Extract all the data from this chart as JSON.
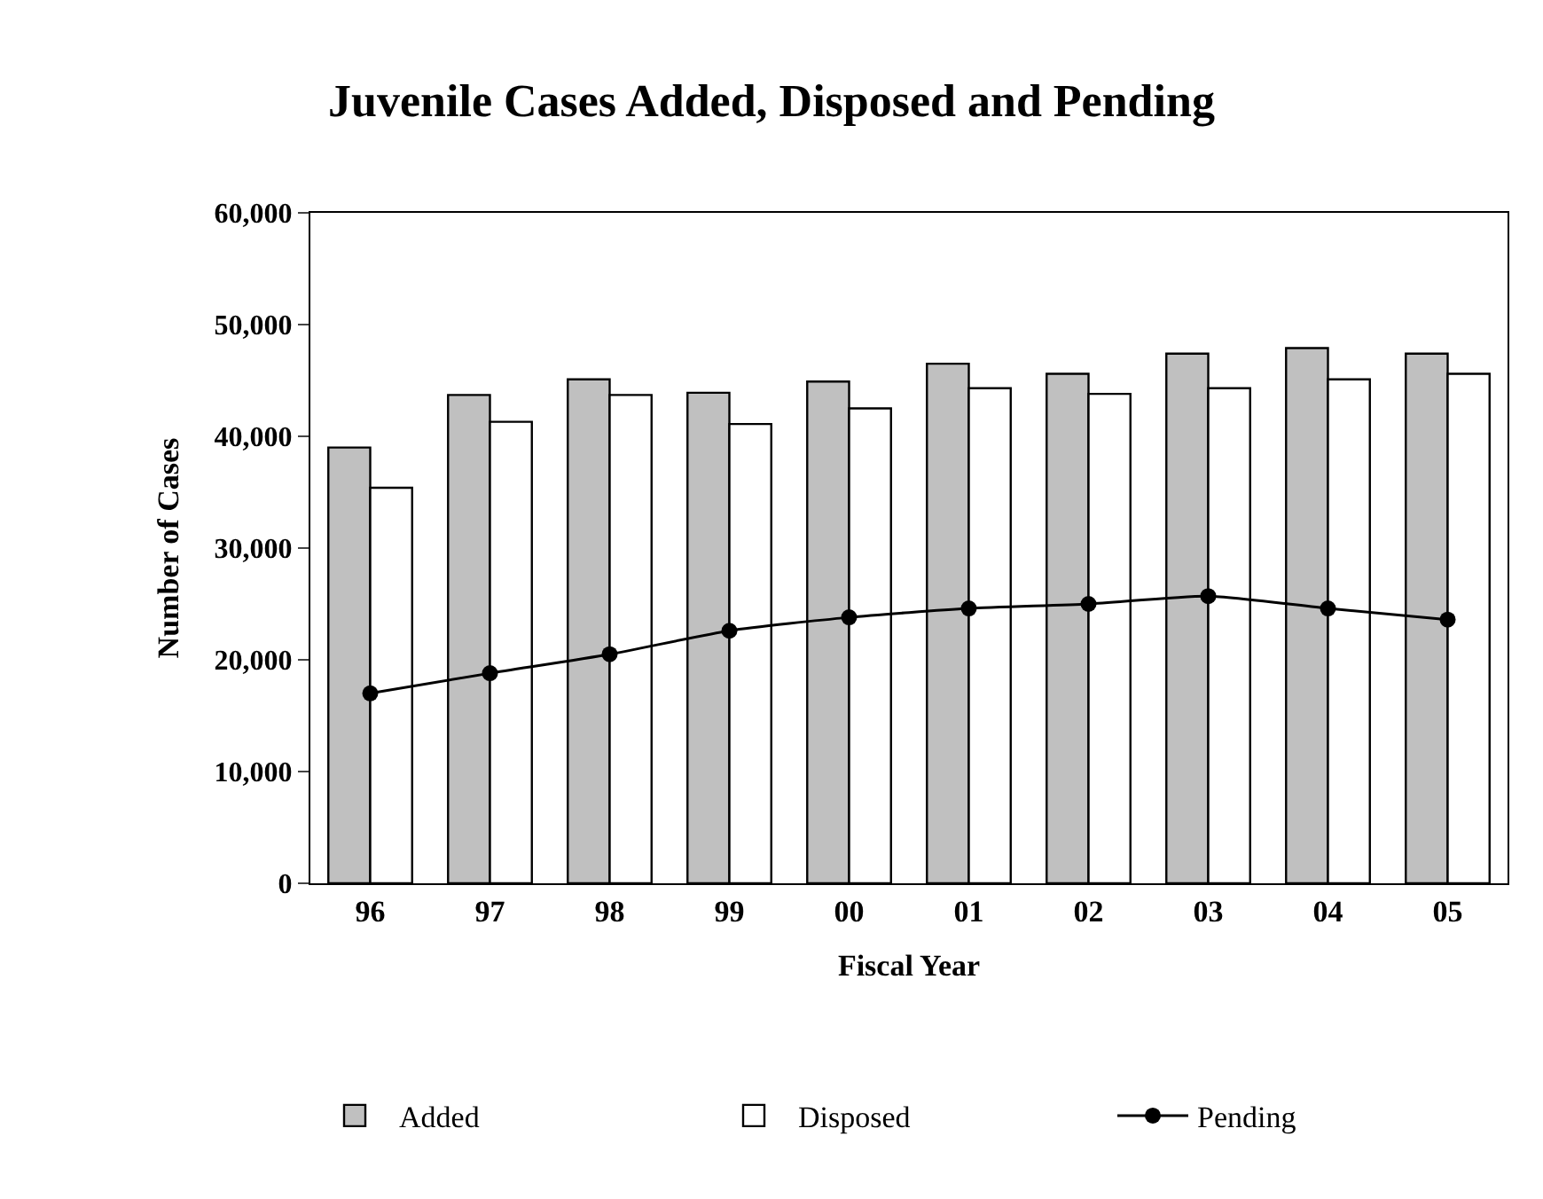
{
  "chart_data": {
    "type": "bar",
    "title": "Juvenile Cases Added, Disposed and Pending",
    "xlabel": "Fiscal Year",
    "ylabel": "Number of Cases",
    "categories": [
      "96",
      "97",
      "98",
      "99",
      "00",
      "01",
      "02",
      "03",
      "04",
      "05"
    ],
    "series": [
      {
        "name": "Added",
        "color": "#c0c0c0",
        "values": [
          39000,
          43700,
          45100,
          43900,
          44900,
          46500,
          45600,
          47400,
          47900,
          47400
        ]
      },
      {
        "name": "Disposed",
        "color": "#ffffff",
        "values": [
          35400,
          41300,
          43700,
          41100,
          42500,
          44300,
          43800,
          44300,
          45100,
          45600
        ]
      },
      {
        "name": "Pending",
        "type": "line",
        "color": "#000000",
        "marker": "circle",
        "line_style": "solid",
        "values": [
          17000,
          18800,
          20500,
          22600,
          23800,
          24600,
          25000,
          25700,
          24600,
          23600
        ]
      }
    ],
    "ylim": [
      0,
      60000
    ],
    "yticks": [
      {
        "value": 0,
        "label": "0"
      },
      {
        "value": 10000,
        "label": "10,000"
      },
      {
        "value": 20000,
        "label": "20,000"
      },
      {
        "value": 30000,
        "label": "30,000"
      },
      {
        "value": 40000,
        "label": "40,000"
      },
      {
        "value": 50000,
        "label": "50,000"
      },
      {
        "value": 60000,
        "label": "60,000"
      }
    ],
    "grid": false,
    "legend": "bottom"
  }
}
